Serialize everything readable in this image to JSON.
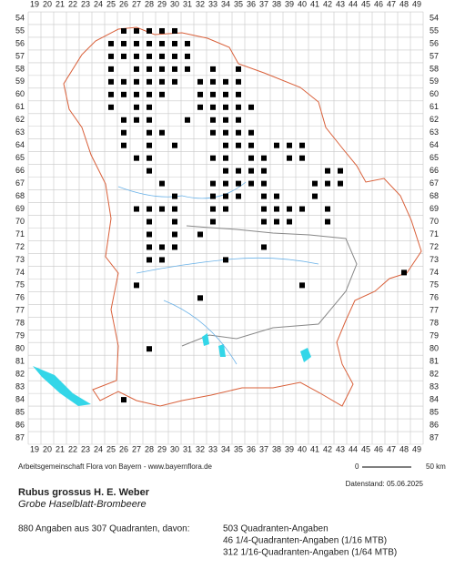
{
  "map": {
    "columns": [
      19,
      20,
      21,
      22,
      23,
      24,
      25,
      26,
      27,
      28,
      29,
      30,
      31,
      32,
      33,
      34,
      35,
      36,
      37,
      38,
      39,
      40,
      41,
      42,
      43,
      44,
      45,
      46,
      47,
      48,
      49
    ],
    "rows": [
      54,
      55,
      56,
      57,
      58,
      59,
      60,
      61,
      62,
      63,
      64,
      65,
      66,
      67,
      68,
      69,
      70,
      71,
      72,
      73,
      74,
      75,
      76,
      77,
      78,
      79,
      80,
      81,
      82,
      83,
      84,
      85,
      86,
      87
    ],
    "occurrences": [
      {
        "row": 55,
        "cols": [
          26,
          27,
          28,
          29,
          30
        ]
      },
      {
        "row": 56,
        "cols": [
          25,
          26,
          27,
          28,
          29,
          30,
          31
        ]
      },
      {
        "row": 57,
        "cols": [
          25,
          26,
          27,
          28,
          29,
          30,
          31
        ]
      },
      {
        "row": 58,
        "cols": [
          25,
          27,
          28,
          29,
          30,
          31,
          33,
          35
        ]
      },
      {
        "row": 59,
        "cols": [
          25,
          26,
          27,
          28,
          29,
          30,
          32,
          33,
          34,
          35
        ]
      },
      {
        "row": 60,
        "cols": [
          25,
          26,
          27,
          28,
          29,
          32,
          33,
          34,
          35
        ]
      },
      {
        "row": 61,
        "cols": [
          25,
          27,
          28,
          32,
          33,
          34,
          35,
          36
        ]
      },
      {
        "row": 62,
        "cols": [
          26,
          27,
          28,
          31,
          33,
          34,
          35
        ]
      },
      {
        "row": 63,
        "cols": [
          26,
          28,
          29,
          33,
          34,
          35,
          36
        ]
      },
      {
        "row": 64,
        "cols": [
          26,
          28,
          30,
          34,
          35,
          36,
          38,
          39,
          40
        ]
      },
      {
        "row": 65,
        "cols": [
          27,
          28,
          33,
          34,
          36,
          37,
          39,
          40
        ]
      },
      {
        "row": 66,
        "cols": [
          28,
          34,
          35,
          36,
          37,
          42,
          43
        ]
      },
      {
        "row": 67,
        "cols": [
          29,
          33,
          34,
          35,
          36,
          37,
          41,
          42,
          43
        ]
      },
      {
        "row": 68,
        "cols": [
          30,
          33,
          34,
          35,
          37,
          38,
          41
        ]
      },
      {
        "row": 69,
        "cols": [
          27,
          28,
          29,
          30,
          33,
          34,
          37,
          38,
          39,
          40,
          42
        ]
      },
      {
        "row": 70,
        "cols": [
          28,
          30,
          33,
          37,
          38,
          39,
          42
        ]
      },
      {
        "row": 71,
        "cols": [
          28,
          30,
          32
        ]
      },
      {
        "row": 72,
        "cols": [
          28,
          29,
          30,
          37
        ]
      },
      {
        "row": 73,
        "cols": [
          28,
          29,
          34
        ]
      },
      {
        "row": 74,
        "cols": [
          48
        ]
      },
      {
        "row": 75,
        "cols": [
          27,
          40
        ]
      },
      {
        "row": 76,
        "cols": [
          32
        ]
      },
      {
        "row": 80,
        "cols": [
          28
        ]
      },
      {
        "row": 84,
        "cols": [
          26
        ]
      }
    ]
  },
  "footer": {
    "credit": "Arbeitsgemeinschaft Flora von Bayern - www.bayernflora.de",
    "scale_start": "0",
    "scale_end": "50 km",
    "date": "Datenstand: 05.06.2025",
    "species": "Rubus grossus H. E. Weber",
    "common_name": "Grobe Haselblatt-Brombeere",
    "summary": "880 Angaben aus 307 Quadranten, davon:",
    "breakdown": [
      "503 Quadranten-Angaben",
      "46 1/4-Quadranten-Angaben (1/16 MTB)",
      "312 1/16-Quadranten-Angaben (1/64 MTB)"
    ]
  }
}
